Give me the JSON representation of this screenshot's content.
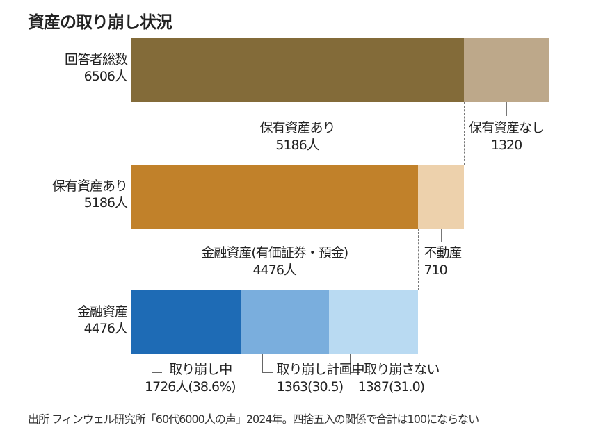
{
  "chart_data": {
    "type": "bar",
    "title": "資産の取り崩し状況",
    "orientation": "horizontal-stacked",
    "rows": [
      {
        "label": "回答者総数",
        "total": "6506人",
        "segments": [
          {
            "name": "保有資産あり",
            "value": 5186,
            "label": "保有資産あり",
            "value_label": "5186人",
            "color": "#836b39"
          },
          {
            "name": "保有資産なし",
            "value": 1320,
            "label": "保有資産なし",
            "value_label": "1320",
            "color": "#bda88a"
          }
        ]
      },
      {
        "label": "保有資産あり",
        "total": "5186人",
        "segments": [
          {
            "name": "金融資産",
            "value": 4476,
            "label": "金融資産(有価証券・預金)",
            "value_label": "4476人",
            "color": "#c1812a"
          },
          {
            "name": "不動産",
            "value": 710,
            "label": "不動産",
            "value_label": "710",
            "color": "#edd1ac"
          }
        ]
      },
      {
        "label": "金融資産",
        "total": "4476人",
        "segments": [
          {
            "name": "取り崩し中",
            "value": 1726,
            "label": "取り崩し中",
            "value_label": "1726人(38.6%)",
            "color": "#1e6bb5"
          },
          {
            "name": "取り崩し計画中",
            "value": 1363,
            "label": "取り崩し計画中",
            "value_label": "1363(30.5)",
            "color": "#7aaedd"
          },
          {
            "name": "取り崩さない",
            "value": 1387,
            "label": "取り崩さない",
            "value_label": "1387(31.0)",
            "color": "#b9daf2"
          }
        ]
      }
    ],
    "max": 6506
  },
  "source": "出所 フィンウェル研究所「60代6000人の声」2024年。四捨五入の関係で合計は100にならない"
}
